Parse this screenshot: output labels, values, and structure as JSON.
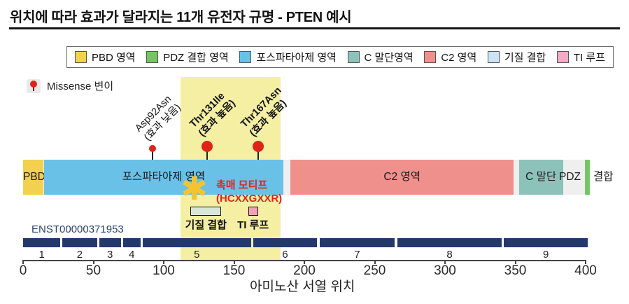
{
  "title": "위치에 따라 효과가 달라지는 11개 유전자 규명 - PTEN 예시",
  "legend": {
    "items": [
      {
        "label": "PBD 영역",
        "color": "#F1D14F"
      },
      {
        "label": "PDZ 결합 영역",
        "color": "#77C465"
      },
      {
        "label": "포스파타아제 영역",
        "color": "#69C1E7"
      },
      {
        "label": "C 말단영역",
        "color": "#8CC2B9"
      },
      {
        "label": "C2 영역",
        "color": "#F0908D"
      },
      {
        "label": "기질 결합",
        "color": "#CCE3F6"
      },
      {
        "label": "TI 루프",
        "color": "#F6A9C4"
      }
    ]
  },
  "missense": {
    "label": "Missense 변이",
    "pin_color": "#E02318"
  },
  "chart_data": {
    "type": "lollipop-domain",
    "xlabel": "아미노산 서열 위치",
    "xlim": [
      0,
      400
    ],
    "x_ticks": [
      0,
      50,
      100,
      150,
      200,
      250,
      300,
      350,
      400
    ],
    "transcript": "ENST00000371953",
    "highlight_region": {
      "start": 112,
      "end": 183,
      "color": "#F5EFA3"
    },
    "mutation_color": "#E02318",
    "mutations": [
      {
        "name": "Asp92Asn",
        "effect": "(효과 낮음)",
        "position": 92,
        "emphasis": false
      },
      {
        "name": "Thr131Ile",
        "effect": "(효과 높음)",
        "position": 131,
        "emphasis": true
      },
      {
        "name": "Thr167Asn",
        "effect": "(효과 높음)",
        "position": 167,
        "emphasis": true
      }
    ],
    "domains": [
      {
        "label": "PBD",
        "start": 0,
        "end": 14.5,
        "color": "#F1D14F"
      },
      {
        "label": "포스파타아제 영역",
        "start": 15,
        "end": 185,
        "color": "#69C1E7"
      },
      {
        "label": "C2 영역",
        "start": 190,
        "end": 349,
        "color": "#F0908D"
      },
      {
        "label": "C 말단",
        "start": 352.5,
        "end": 384,
        "color": "#8CC2B9"
      },
      {
        "label": "",
        "label_before": "PDZ",
        "label_after": "결합",
        "start": 399.5,
        "end": 403,
        "color": "#77C465"
      }
    ],
    "catalytic_motif": {
      "label": "촉매 모티프",
      "sequence": "(HCXXGXXR)",
      "position": 123,
      "color": "#E0231E",
      "star_glyph": "✱",
      "star_color": "#F4C430"
    },
    "sub_features": [
      {
        "label": "기질 결합",
        "start": 119,
        "end": 141,
        "color": "#D9E7DB"
      },
      {
        "label": "TI 루프",
        "start": 160,
        "end": 167,
        "color": "#F5A0B8"
      }
    ],
    "exon_bar_color": "#24396B",
    "exons": [
      {
        "number": "1",
        "start": 0,
        "end": 26.5
      },
      {
        "number": "2",
        "start": 28,
        "end": 52.5
      },
      {
        "number": "3",
        "start": 54,
        "end": 69.5
      },
      {
        "number": "4",
        "start": 71,
        "end": 83.5
      },
      {
        "number": "5",
        "start": 85,
        "end": 162
      },
      {
        "number": "6",
        "start": 163.5,
        "end": 209
      },
      {
        "number": "7",
        "start": 211,
        "end": 264
      },
      {
        "number": "8",
        "start": 266,
        "end": 340.5
      },
      {
        "number": "9",
        "start": 342,
        "end": 401.5
      }
    ]
  }
}
